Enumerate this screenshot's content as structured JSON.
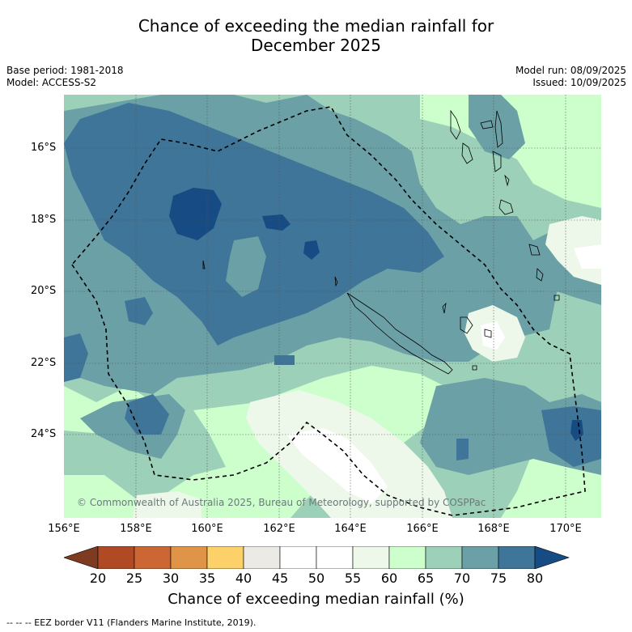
{
  "header": {
    "title_line1": "Chance of exceeding the median rainfall for",
    "title_line2": "December 2025",
    "base_period": "Base period: 1981-2018",
    "model": "Model: ACCESS-S2",
    "model_run": "Model run: 08/09/2025",
    "issued": "Issued: 10/09/2025"
  },
  "map": {
    "lat_labels": [
      "16°S",
      "18°S",
      "20°S",
      "22°S",
      "24°S"
    ],
    "lon_labels": [
      "156°E",
      "158°E",
      "160°E",
      "162°E",
      "164°E",
      "166°E",
      "168°E",
      "170°E"
    ],
    "copyright": "© Commonwealth of Australia 2025, Bureau of Meteorology, supported by COSPPac"
  },
  "colorbar": {
    "ticks": [
      "20",
      "25",
      "30",
      "35",
      "40",
      "45",
      "50",
      "55",
      "60",
      "65",
      "70",
      "75",
      "80"
    ],
    "colors": [
      "#7f3a22",
      "#b04a24",
      "#cc6633",
      "#e09448",
      "#fdd16a",
      "#ebeae4",
      "#ffffff",
      "#ffffff",
      "#eef8ea",
      "#ccffcc",
      "#9dd0b8",
      "#6aa0a6",
      "#3f7598",
      "#174b83"
    ],
    "title": "Chance of exceeding median rainfall (%)"
  },
  "footer": {
    "legend": "--  --  -- EEZ border V11 (Flanders Marine Institute, 2019)."
  }
}
